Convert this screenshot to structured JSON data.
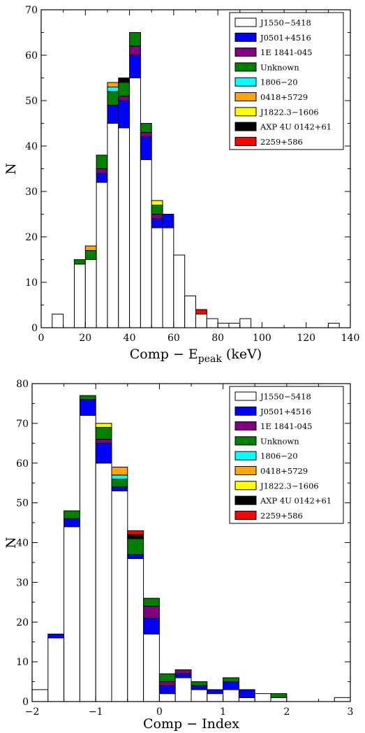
{
  "legend_labels": [
    "J1550−5418",
    "J0501+4516",
    "1E 1841-045",
    "Unknown",
    "1806−20",
    "0418+5729",
    "J1822.3−1606",
    "AXP 4U 0142+61",
    "2259+586"
  ],
  "chart_data": [
    {
      "type": "bar",
      "stacked": true,
      "xlabel": "Comp − E",
      "xlabel_subscript": "peak",
      "xlabel_unit": " (keV)",
      "ylabel": "N",
      "xlim": [
        0,
        140
      ],
      "ylim": [
        0,
        70
      ],
      "xticks": [
        0,
        20,
        40,
        60,
        80,
        100,
        120,
        140
      ],
      "yticks": [
        0,
        10,
        20,
        30,
        40,
        50,
        60,
        70
      ],
      "bin_width": 5,
      "grid": false,
      "legend_position": "top-right",
      "bin_starts": [
        5,
        15,
        20,
        25,
        30,
        35,
        40,
        45,
        50,
        55,
        60,
        65,
        70,
        75,
        80,
        85,
        90,
        130
      ],
      "series": [
        {
          "name": "J1550−5418",
          "color": "#ffffff",
          "values": [
            3,
            14,
            15,
            32,
            45,
            44,
            55,
            37,
            22,
            22,
            16,
            7,
            3,
            2,
            1,
            1,
            2,
            1
          ]
        },
        {
          "name": "J0501+4516",
          "color": "#0000ff",
          "values": [
            0,
            0,
            0,
            2,
            4,
            6,
            5,
            5,
            2,
            3,
            0,
            0,
            0,
            0,
            0,
            0,
            0,
            0
          ]
        },
        {
          "name": "1E 1841-045",
          "color": "#800080",
          "values": [
            0,
            0,
            0,
            1,
            0,
            1,
            2,
            1,
            1,
            0,
            0,
            0,
            0,
            0,
            0,
            0,
            0,
            0
          ]
        },
        {
          "name": "Unknown",
          "color": "#008000",
          "values": [
            0,
            1,
            2,
            3,
            3,
            3,
            3,
            2,
            2,
            0,
            0,
            0,
            0,
            0,
            0,
            0,
            0,
            0
          ]
        },
        {
          "name": "1806−20",
          "color": "#00ffff",
          "values": [
            0,
            0,
            0,
            0,
            1,
            0,
            0,
            0,
            0,
            0,
            0,
            0,
            0,
            0,
            0,
            0,
            0,
            0
          ]
        },
        {
          "name": "0418+5729",
          "color": "#ffa500",
          "values": [
            0,
            0,
            1,
            0,
            1,
            0,
            0,
            0,
            0,
            0,
            0,
            0,
            0,
            0,
            0,
            0,
            0,
            0
          ]
        },
        {
          "name": "J1822.3−1606",
          "color": "#ffff00",
          "values": [
            0,
            0,
            0,
            0,
            0,
            0,
            0,
            0,
            1,
            0,
            0,
            0,
            0,
            0,
            0,
            0,
            0,
            0
          ]
        },
        {
          "name": "AXP 4U 0142+61",
          "color": "#000000",
          "values": [
            0,
            0,
            0,
            0,
            0,
            1,
            0,
            0,
            0,
            0,
            0,
            0,
            0,
            0,
            0,
            0,
            0,
            0
          ]
        },
        {
          "name": "2259+586",
          "color": "#ff0000",
          "values": [
            0,
            0,
            0,
            0,
            0,
            0,
            0,
            0,
            0,
            0,
            0,
            0,
            1,
            0,
            0,
            0,
            0,
            0
          ]
        }
      ]
    },
    {
      "type": "bar",
      "stacked": true,
      "xlabel": "Comp − Index",
      "ylabel": "N",
      "xlim": [
        -2,
        3
      ],
      "ylim": [
        0,
        80
      ],
      "xticks": [
        -2,
        -1,
        0,
        1,
        2,
        3
      ],
      "xtick_labels": [
        "−2",
        "−1",
        "0",
        "1",
        "2",
        "3"
      ],
      "yticks": [
        0,
        10,
        20,
        30,
        40,
        50,
        60,
        70,
        80
      ],
      "bin_width": 0.25,
      "grid": false,
      "legend_position": "top-right",
      "bin_starts": [
        -2.0,
        -1.75,
        -1.5,
        -1.25,
        -1.0,
        -0.75,
        -0.5,
        -0.25,
        0.0,
        0.25,
        0.5,
        0.75,
        1.0,
        1.25,
        1.5,
        1.75,
        2.75
      ],
      "series": [
        {
          "name": "J1550−5418",
          "color": "#ffffff",
          "values": [
            3,
            16,
            44,
            72,
            60,
            53,
            36,
            17,
            2,
            6,
            3,
            2,
            3,
            1,
            2,
            1,
            1
          ]
        },
        {
          "name": "J0501+4516",
          "color": "#0000ff",
          "values": [
            0,
            1,
            2,
            4,
            5,
            1,
            1,
            4,
            2,
            1,
            1,
            1,
            2,
            2,
            0,
            0,
            0
          ]
        },
        {
          "name": "1E 1841-045",
          "color": "#800080",
          "values": [
            0,
            0,
            0,
            0,
            1,
            0,
            0,
            3,
            1,
            1,
            0,
            0,
            0,
            0,
            0,
            0,
            0
          ]
        },
        {
          "name": "Unknown",
          "color": "#008000",
          "values": [
            0,
            0,
            2,
            1,
            3,
            2,
            4,
            2,
            2,
            0,
            1,
            0,
            1,
            0,
            0,
            1,
            0
          ]
        },
        {
          "name": "1806−20",
          "color": "#00ffff",
          "values": [
            0,
            0,
            0,
            0,
            0,
            1,
            0,
            0,
            0,
            0,
            0,
            0,
            0,
            0,
            0,
            0,
            0
          ]
        },
        {
          "name": "0418+5729",
          "color": "#ffa500",
          "values": [
            0,
            0,
            0,
            0,
            0,
            2,
            0,
            0,
            0,
            0,
            0,
            0,
            0,
            0,
            0,
            0,
            0
          ]
        },
        {
          "name": "J1822.3−1606",
          "color": "#ffff00",
          "values": [
            0,
            0,
            0,
            0,
            1,
            0,
            0,
            0,
            0,
            0,
            0,
            0,
            0,
            0,
            0,
            0,
            0
          ]
        },
        {
          "name": "AXP 4U 0142+61",
          "color": "#000000",
          "values": [
            0,
            0,
            0,
            0,
            0,
            0,
            1,
            0,
            0,
            0,
            0,
            0,
            0,
            0,
            0,
            0,
            0
          ]
        },
        {
          "name": "2259+586",
          "color": "#ff0000",
          "values": [
            0,
            0,
            0,
            0,
            0,
            0,
            1,
            0,
            0,
            0,
            0,
            0,
            0,
            0,
            0,
            0,
            0
          ]
        }
      ]
    }
  ]
}
